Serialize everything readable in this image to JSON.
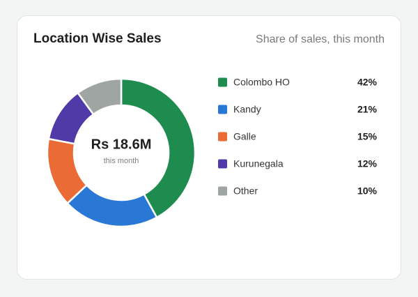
{
  "chart_data": {
    "type": "pie",
    "title": "Location Wise Sales",
    "subtitle": "Share of sales, this month",
    "center_text": "Rs 18.6M",
    "center_subtext": "this month",
    "categories": [
      "Colombo HO",
      "Kandy",
      "Galle",
      "Kurunegala",
      "Other"
    ],
    "values": [
      42,
      21,
      15,
      12,
      10
    ],
    "value_labels": [
      "42%",
      "21%",
      "15%",
      "12%",
      "10%"
    ],
    "colors": [
      "#1e8c4e",
      "#2a78d6",
      "#ea6b35",
      "#4f3aa8",
      "#9ea5a3"
    ]
  }
}
